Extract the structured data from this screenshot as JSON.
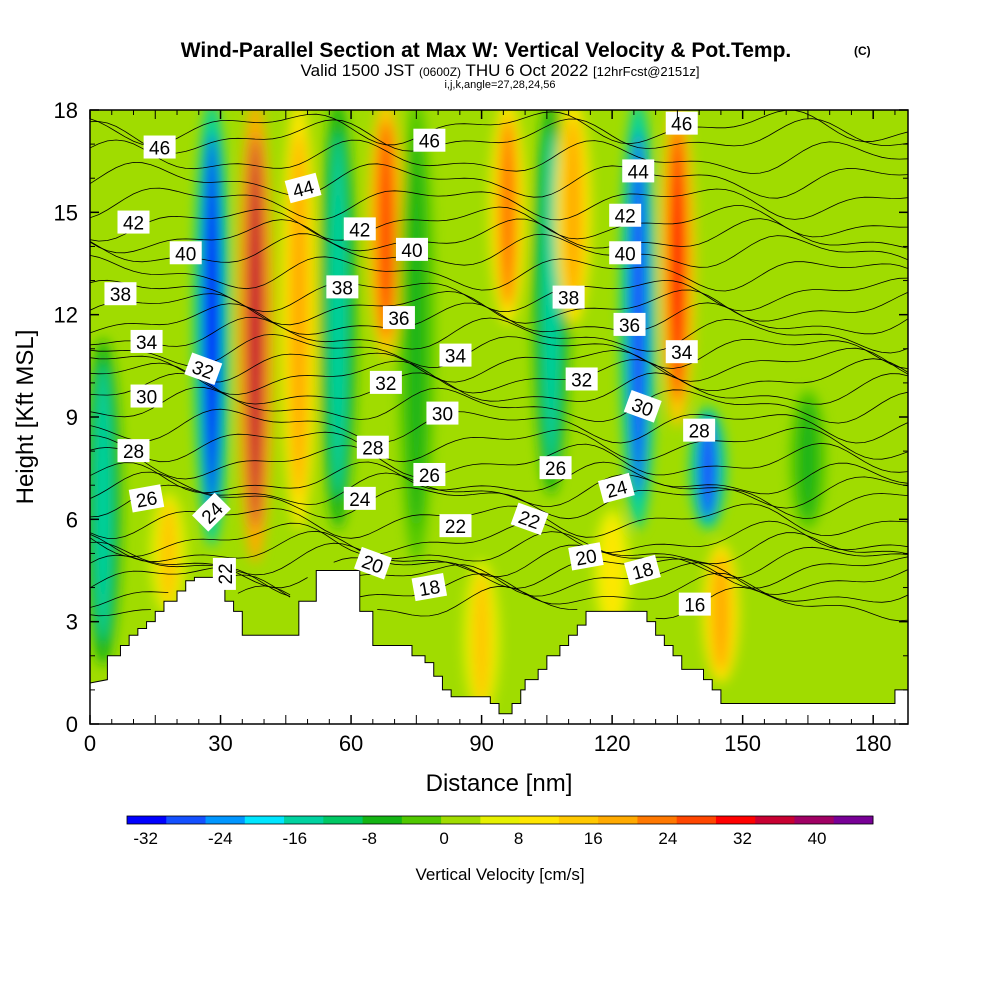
{
  "chart_data": {
    "type": "heatmap",
    "title": "Wind-Parallel Section at Max W: Vertical Velocity & Pot.Temp.",
    "copyright_mark": "(C)",
    "subtitle_main": "Valid 1500 JST",
    "subtitle_utc": "(0600Z)",
    "subtitle_date": "THU 6 Oct 2022",
    "subtitle_fcst": "[12hrFcst@2151z]",
    "info_line": "i,j,k,angle=27,28,24,56",
    "xlabel": "Distance [nm]",
    "ylabel": "Height [Kft MSL]",
    "xlim": [
      0,
      188
    ],
    "ylim": [
      0,
      18
    ],
    "x_ticks": [
      "0",
      "30",
      "60",
      "90",
      "120",
      "150",
      "180"
    ],
    "y_ticks": [
      "0",
      "3",
      "6",
      "9",
      "12",
      "15",
      "18"
    ],
    "colorbar": {
      "label": "Vertical Velocity [cm/s]",
      "min": -34,
      "max": 46,
      "ticks": [
        "-32",
        "-24",
        "-16",
        "-8",
        "0",
        "8",
        "16",
        "24",
        "32",
        "40"
      ],
      "colors": [
        "#0000ff",
        "#1450ff",
        "#0096ff",
        "#00e6ff",
        "#00d2a0",
        "#00c864",
        "#14b414",
        "#50c800",
        "#a0dc00",
        "#e6f000",
        "#ffe600",
        "#ffc800",
        "#ffaa00",
        "#ff7800",
        "#ff4600",
        "#ff0000",
        "#c80032",
        "#a00064",
        "#780096"
      ]
    },
    "vertical_velocity_features": [
      {
        "x": 28,
        "z_bottom": 5.5,
        "z_top": 18,
        "value": -30,
        "kind": "downdraft"
      },
      {
        "x": 38,
        "z_bottom": 5.0,
        "z_top": 18,
        "value": 36,
        "kind": "updraft"
      },
      {
        "x": 48,
        "z_bottom": 6.0,
        "z_top": 18,
        "value": 20,
        "kind": "updraft"
      },
      {
        "x": 57,
        "z_bottom": 6.0,
        "z_top": 18,
        "value": -16,
        "kind": "downdraft"
      },
      {
        "x": 68,
        "z_bottom": 11.0,
        "z_top": 18,
        "value": 26,
        "kind": "updraft"
      },
      {
        "x": 75,
        "z_bottom": 5.0,
        "z_top": 18,
        "value": -6,
        "kind": "downdraft"
      },
      {
        "x": 96,
        "z_bottom": 12.0,
        "z_top": 18,
        "value": 24,
        "kind": "updraft"
      },
      {
        "x": 106,
        "z_bottom": 7.0,
        "z_top": 18,
        "value": -16,
        "kind": "downdraft"
      },
      {
        "x": 111,
        "z_bottom": 12.0,
        "z_top": 18,
        "value": 18,
        "kind": "updraft"
      },
      {
        "x": 126,
        "z_bottom": 6.0,
        "z_top": 18,
        "value": -28,
        "kind": "downdraft"
      },
      {
        "x": 135,
        "z_bottom": 9.0,
        "z_top": 18,
        "value": 30,
        "kind": "updraft"
      },
      {
        "x": 142,
        "z_bottom": 6.0,
        "z_top": 9.0,
        "value": -26,
        "kind": "downdraft"
      },
      {
        "x": 3,
        "z_bottom": 2.0,
        "z_top": 11.0,
        "value": -16,
        "kind": "downdraft"
      },
      {
        "x": 18,
        "z_bottom": 3.5,
        "z_top": 6.5,
        "value": 14,
        "kind": "updraft"
      },
      {
        "x": 90,
        "z_bottom": 0.5,
        "z_top": 4.5,
        "value": 16,
        "kind": "updraft"
      },
      {
        "x": 145,
        "z_bottom": 1.5,
        "z_top": 5.0,
        "value": 18,
        "kind": "updraft"
      },
      {
        "x": 120,
        "z_bottom": 3.0,
        "z_top": 6.0,
        "value": 12,
        "kind": "updraft"
      },
      {
        "x": 165,
        "z_bottom": 6.0,
        "z_top": 9.5,
        "value": -8,
        "kind": "downdraft"
      }
    ],
    "terrain_profile": [
      [
        0,
        1.2
      ],
      [
        4,
        1.3
      ],
      [
        4,
        1.3
      ],
      [
        4,
        2.0
      ],
      [
        7,
        2.0
      ],
      [
        7,
        2.3
      ],
      [
        9,
        2.3
      ],
      [
        9,
        2.6
      ],
      [
        11,
        2.6
      ],
      [
        11,
        2.8
      ],
      [
        13,
        2.8
      ],
      [
        13,
        3.0
      ],
      [
        15,
        3.0
      ],
      [
        15,
        3.3
      ],
      [
        17,
        3.3
      ],
      [
        17,
        3.6
      ],
      [
        20,
        3.6
      ],
      [
        20,
        3.9
      ],
      [
        22,
        3.9
      ],
      [
        22,
        4.2
      ],
      [
        24,
        4.2
      ],
      [
        24,
        4.3
      ],
      [
        31,
        4.3
      ],
      [
        31,
        3.6
      ],
      [
        33,
        3.6
      ],
      [
        33,
        3.3
      ],
      [
        35,
        3.3
      ],
      [
        35,
        2.6
      ],
      [
        48,
        2.6
      ],
      [
        48,
        3.6
      ],
      [
        52,
        3.6
      ],
      [
        52,
        4.5
      ],
      [
        62,
        4.5
      ],
      [
        62,
        3.3
      ],
      [
        65,
        3.3
      ],
      [
        65,
        2.3
      ],
      [
        74,
        2.3
      ],
      [
        74,
        2.0
      ],
      [
        77,
        2.0
      ],
      [
        77,
        1.8
      ],
      [
        79,
        1.8
      ],
      [
        79,
        1.4
      ],
      [
        81,
        1.4
      ],
      [
        81,
        1.0
      ],
      [
        83,
        1.0
      ],
      [
        83,
        0.8
      ],
      [
        92,
        0.8
      ],
      [
        92,
        0.6
      ],
      [
        94,
        0.6
      ],
      [
        94,
        0.3
      ],
      [
        97,
        0.3
      ],
      [
        97,
        0.6
      ],
      [
        99,
        0.6
      ],
      [
        99,
        1.0
      ],
      [
        100,
        1.0
      ],
      [
        100,
        1.3
      ],
      [
        103,
        1.3
      ],
      [
        103,
        1.6
      ],
      [
        105,
        1.6
      ],
      [
        105,
        2.0
      ],
      [
        108,
        2.0
      ],
      [
        108,
        2.3
      ],
      [
        110,
        2.3
      ],
      [
        110,
        2.6
      ],
      [
        112,
        2.6
      ],
      [
        112,
        2.9
      ],
      [
        114,
        2.9
      ],
      [
        114,
        3.3
      ],
      [
        128,
        3.3
      ],
      [
        128,
        3.0
      ],
      [
        130,
        3.0
      ],
      [
        130,
        2.6
      ],
      [
        132,
        2.6
      ],
      [
        132,
        2.3
      ],
      [
        134,
        2.3
      ],
      [
        134,
        2.0
      ],
      [
        136,
        2.0
      ],
      [
        136,
        1.6
      ],
      [
        141,
        1.6
      ],
      [
        141,
        1.3
      ],
      [
        143,
        1.3
      ],
      [
        143,
        1.0
      ],
      [
        145,
        1.0
      ],
      [
        145,
        0.6
      ],
      [
        185,
        0.6
      ],
      [
        185,
        1.0
      ],
      [
        188,
        1.0
      ]
    ],
    "isentrope_levels": [
      16,
      17,
      18,
      19,
      20,
      21,
      22,
      23,
      24,
      25,
      26,
      27,
      28,
      29,
      30,
      31,
      32,
      33,
      34,
      35,
      36,
      37,
      38,
      39,
      40,
      41,
      42,
      43,
      44,
      45,
      46,
      47
    ],
    "contour_labels": [
      {
        "text": "46",
        "x": 16,
        "z": 16.9,
        "angle": 0
      },
      {
        "text": "46",
        "x": 78,
        "z": 17.1,
        "angle": 0
      },
      {
        "text": "46",
        "x": 136,
        "z": 17.6,
        "angle": 0
      },
      {
        "text": "44",
        "x": 49,
        "z": 15.7,
        "angle": -15
      },
      {
        "text": "44",
        "x": 126,
        "z": 16.2,
        "angle": 0
      },
      {
        "text": "42",
        "x": 10,
        "z": 14.7,
        "angle": 0
      },
      {
        "text": "42",
        "x": 62,
        "z": 14.5,
        "angle": 0
      },
      {
        "text": "42",
        "x": 123,
        "z": 14.9,
        "angle": 0
      },
      {
        "text": "40",
        "x": 22,
        "z": 13.8,
        "angle": 0
      },
      {
        "text": "40",
        "x": 74,
        "z": 13.9,
        "angle": 0
      },
      {
        "text": "40",
        "x": 123,
        "z": 13.8,
        "angle": 0
      },
      {
        "text": "38",
        "x": 7,
        "z": 12.6,
        "angle": 0
      },
      {
        "text": "38",
        "x": 58,
        "z": 12.8,
        "angle": 0
      },
      {
        "text": "38",
        "x": 110,
        "z": 12.5,
        "angle": 0
      },
      {
        "text": "36",
        "x": 71,
        "z": 11.9,
        "angle": 0
      },
      {
        "text": "36",
        "x": 124,
        "z": 11.7,
        "angle": 0
      },
      {
        "text": "34",
        "x": 13,
        "z": 11.2,
        "angle": 0
      },
      {
        "text": "34",
        "x": 84,
        "z": 10.8,
        "angle": 0
      },
      {
        "text": "34",
        "x": 136,
        "z": 10.9,
        "angle": 0
      },
      {
        "text": "32",
        "x": 26,
        "z": 10.4,
        "angle": 20
      },
      {
        "text": "32",
        "x": 68,
        "z": 10.0,
        "angle": 0
      },
      {
        "text": "32",
        "x": 113,
        "z": 10.1,
        "angle": 0
      },
      {
        "text": "30",
        "x": 13,
        "z": 9.6,
        "angle": 0
      },
      {
        "text": "30",
        "x": 81,
        "z": 9.1,
        "angle": 0
      },
      {
        "text": "30",
        "x": 127,
        "z": 9.3,
        "angle": 20
      },
      {
        "text": "28",
        "x": 10,
        "z": 8.0,
        "angle": 0
      },
      {
        "text": "28",
        "x": 65,
        "z": 8.1,
        "angle": 0
      },
      {
        "text": "28",
        "x": 140,
        "z": 8.6,
        "angle": 0
      },
      {
        "text": "26",
        "x": 13,
        "z": 6.6,
        "angle": -10
      },
      {
        "text": "26",
        "x": 78,
        "z": 7.3,
        "angle": 0
      },
      {
        "text": "26",
        "x": 107,
        "z": 7.5,
        "angle": 0
      },
      {
        "text": "24",
        "x": 28,
        "z": 6.2,
        "angle": -45
      },
      {
        "text": "24",
        "x": 62,
        "z": 6.6,
        "angle": 0
      },
      {
        "text": "24",
        "x": 121,
        "z": 6.9,
        "angle": -15
      },
      {
        "text": "22",
        "x": 31,
        "z": 4.4,
        "angle": -90
      },
      {
        "text": "22",
        "x": 84,
        "z": 5.8,
        "angle": 0
      },
      {
        "text": "22",
        "x": 101,
        "z": 6.0,
        "angle": 20
      },
      {
        "text": "20",
        "x": 65,
        "z": 4.7,
        "angle": 20
      },
      {
        "text": "20",
        "x": 114,
        "z": 4.9,
        "angle": -10
      },
      {
        "text": "18",
        "x": 78,
        "z": 4.0,
        "angle": -10
      },
      {
        "text": "18",
        "x": 127,
        "z": 4.5,
        "angle": -15
      },
      {
        "text": "16",
        "x": 139,
        "z": 3.5,
        "angle": 0
      }
    ]
  }
}
